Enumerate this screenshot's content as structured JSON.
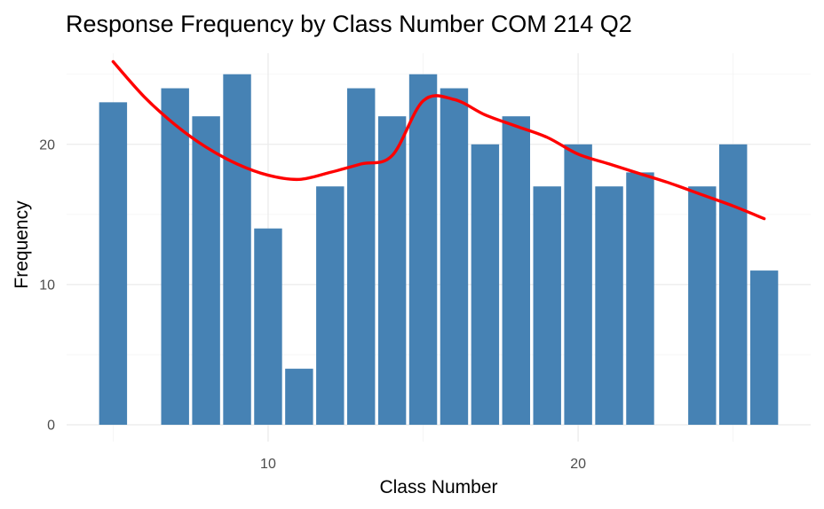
{
  "chart_data": {
    "type": "bar",
    "title": "Response Frequency by Class Number COM 214 Q2",
    "xlabel": "Class Number",
    "ylabel": "Frequency",
    "x": [
      5,
      7,
      8,
      9,
      10,
      11,
      12,
      13,
      14,
      15,
      16,
      17,
      18,
      19,
      20,
      21,
      22,
      24,
      25,
      26
    ],
    "values": [
      23,
      24,
      22,
      25,
      14,
      4,
      17,
      24,
      22,
      25,
      24,
      20,
      22,
      17,
      20,
      17,
      18,
      17,
      20,
      11
    ],
    "xlim": [
      3.5,
      27.5
    ],
    "ylim": [
      -1.2,
      26.5
    ],
    "xticks": [
      10,
      20
    ],
    "xticks_minor": [
      5,
      15,
      25
    ],
    "yticks": [
      0,
      10,
      20
    ],
    "yticks_minor": [
      5,
      15,
      25
    ],
    "smooth": {
      "x": [
        5,
        6,
        7,
        8,
        9,
        10,
        11,
        12,
        13,
        14,
        15,
        16,
        17,
        18,
        19,
        20,
        21,
        22,
        23,
        24,
        25,
        26
      ],
      "y": [
        25.9,
        23.4,
        21.4,
        19.8,
        18.6,
        17.8,
        17.5,
        18.0,
        18.6,
        19.2,
        23.1,
        23.2,
        22.1,
        21.3,
        20.5,
        19.3,
        18.6,
        17.9,
        17.2,
        16.4,
        15.6,
        14.7
      ]
    },
    "grid": true,
    "legend": "none",
    "colors": {
      "bar": "#4682B4",
      "line": "#FF0000"
    }
  }
}
